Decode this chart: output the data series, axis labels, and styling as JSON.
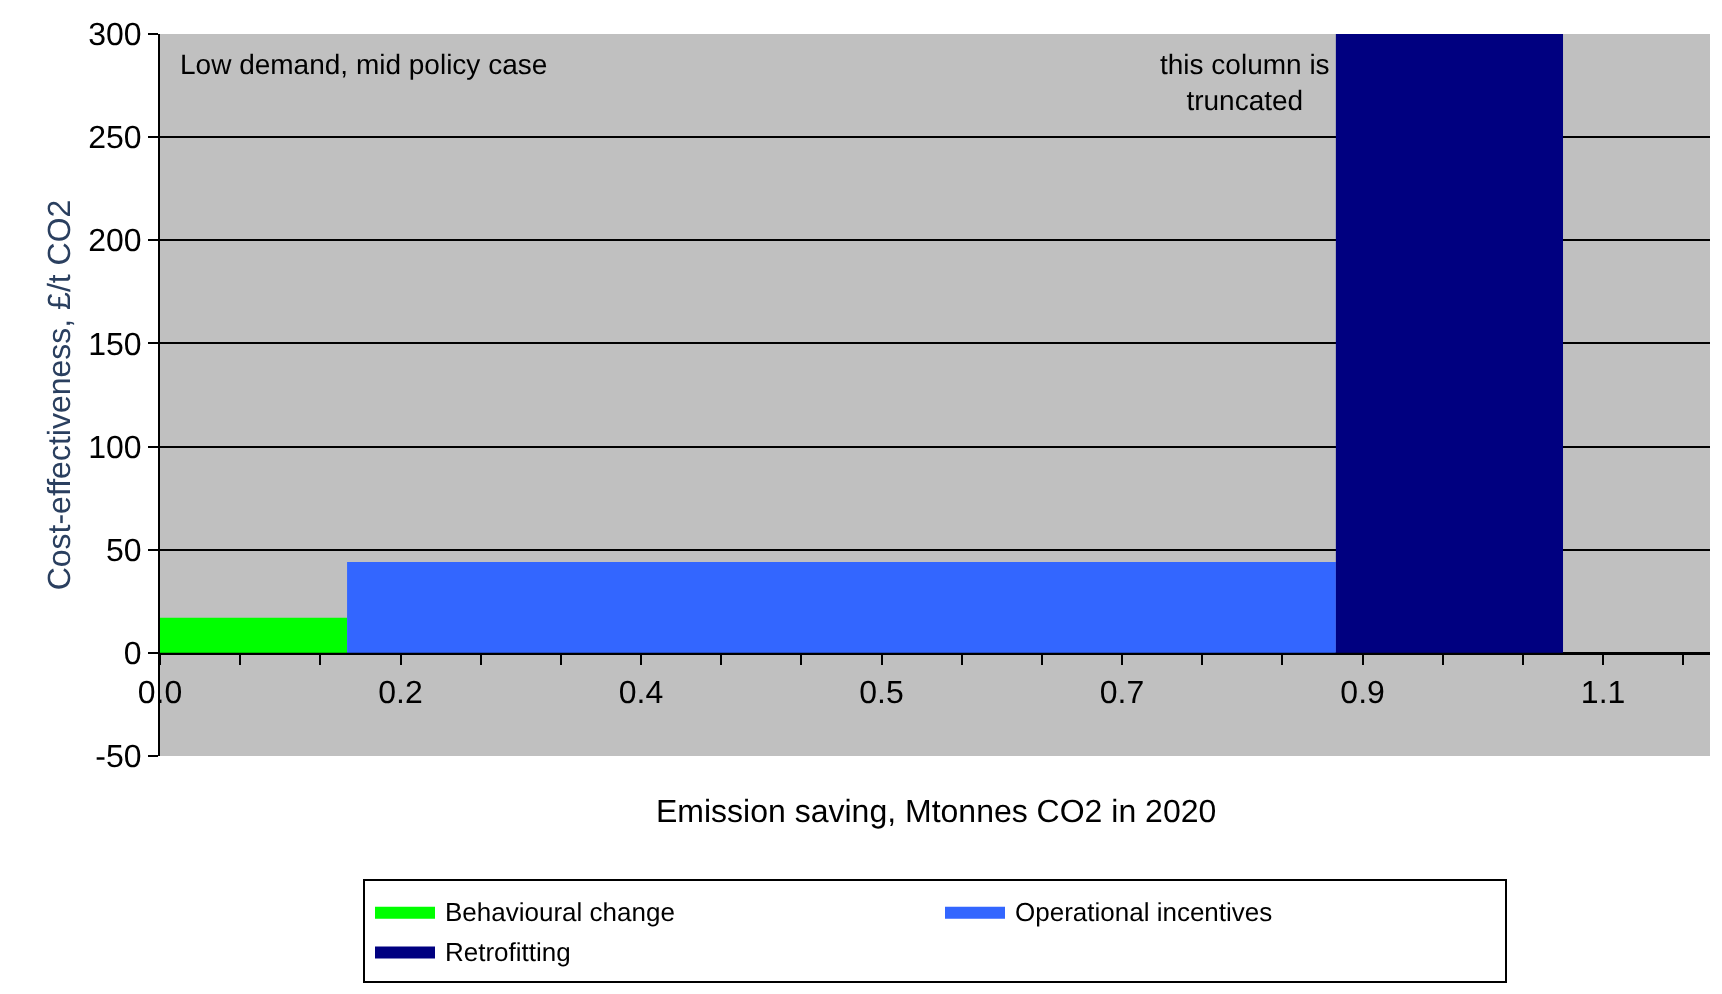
{
  "chart_data": {
    "type": "area",
    "xlabel": "Emission saving, Mtonnes CO2 in 2020",
    "ylabel": "Cost-effectiveness, £/t CO2",
    "annotations": [
      "Low demand, mid policy case",
      "this column is\ntruncated"
    ],
    "series": [
      {
        "name": "Behavioural change",
        "color": "#00ff00",
        "x": [
          0,
          0.14
        ],
        "values": [
          17,
          17
        ]
      },
      {
        "name": "Operational incentives",
        "color": "#3366ff",
        "x": [
          0.14,
          0.88
        ],
        "values": [
          44,
          44
        ]
      },
      {
        "name": "Retrofitting",
        "color": "#000080",
        "x": [
          0.88,
          1.05
        ],
        "values": [
          300,
          300
        ]
      }
    ],
    "xlim": [
      0,
      1.16
    ],
    "xticks": [
      {
        "value": 0,
        "label": "0.0"
      },
      {
        "value": 0.18,
        "label": "0.2"
      },
      {
        "value": 0.36,
        "label": "0.4"
      },
      {
        "value": 0.54,
        "label": "0.5"
      },
      {
        "value": 0.72,
        "label": "0.7"
      },
      {
        "value": 0.9,
        "label": "0.9"
      },
      {
        "value": 1.08,
        "label": "1.1"
      }
    ],
    "ylim": [
      -50,
      300
    ],
    "yticks": [
      -50,
      0,
      50,
      100,
      150,
      200,
      250,
      300
    ],
    "grid": "y",
    "legend": "bottom"
  }
}
